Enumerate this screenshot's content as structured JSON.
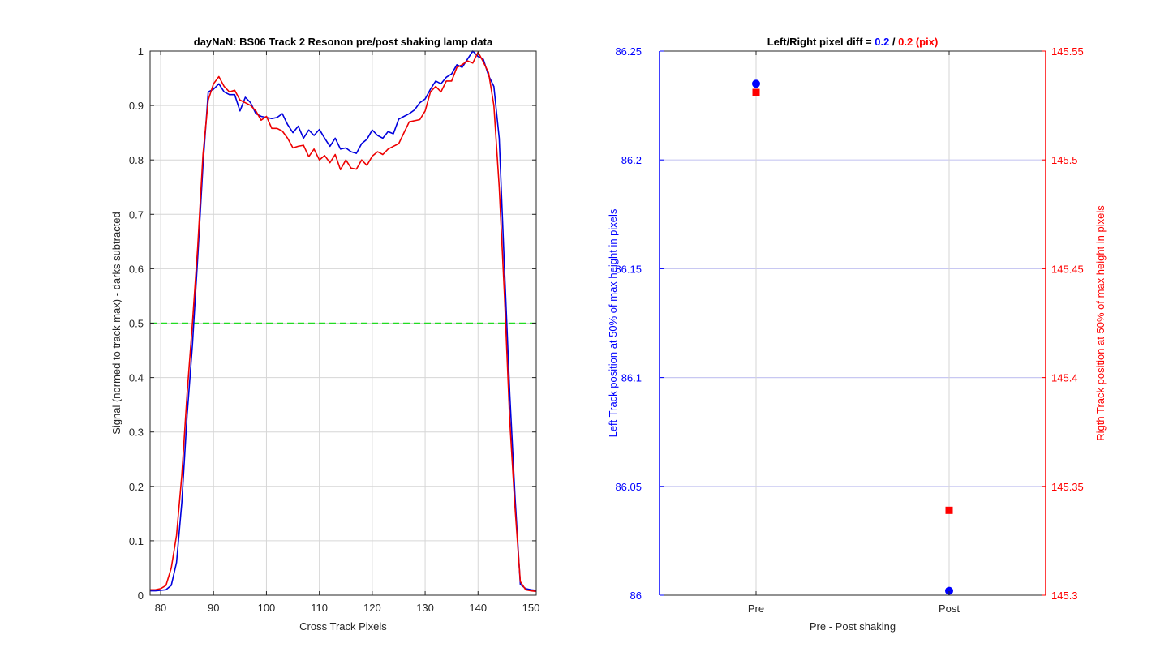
{
  "chart_data": [
    {
      "type": "line",
      "title": "dayNaN: BS06  Track 2 Resonon pre/post shaking lamp data",
      "xlabel": "Cross Track Pixels",
      "ylabel": "Signal (normed to track max) - darks subtracted",
      "xlim": [
        78,
        151
      ],
      "ylim": [
        0,
        1
      ],
      "xticks": [
        80,
        90,
        100,
        110,
        120,
        130,
        140,
        150
      ],
      "yticks": [
        0,
        0.1,
        0.2,
        0.3,
        0.4,
        0.5,
        0.6,
        0.7,
        0.8,
        0.9,
        1
      ],
      "grid": true,
      "reference_line": {
        "y": 0.5,
        "color": "#22dd22",
        "style": "dashed"
      },
      "series": [
        {
          "color": "#0000dd",
          "x": [
            78,
            79,
            80,
            81,
            82,
            83,
            84,
            85,
            86,
            87,
            88,
            89,
            90,
            91,
            92,
            93,
            94,
            95,
            96,
            97,
            98,
            99,
            100,
            101,
            102,
            103,
            104,
            105,
            106,
            107,
            108,
            109,
            110,
            111,
            112,
            113,
            114,
            115,
            116,
            117,
            118,
            119,
            120,
            121,
            122,
            123,
            124,
            125,
            126,
            127,
            128,
            129,
            130,
            131,
            132,
            133,
            134,
            135,
            136,
            137,
            138,
            139,
            140,
            141,
            142,
            143,
            144,
            145,
            146,
            147,
            148,
            149,
            150,
            151
          ],
          "values": [
            0.008,
            0.008,
            0.009,
            0.01,
            0.018,
            0.06,
            0.17,
            0.33,
            0.46,
            0.62,
            0.79,
            0.925,
            0.93,
            0.94,
            0.925,
            0.92,
            0.92,
            0.89,
            0.915,
            0.905,
            0.885,
            0.88,
            0.878,
            0.876,
            0.878,
            0.885,
            0.865,
            0.85,
            0.862,
            0.84,
            0.855,
            0.845,
            0.856,
            0.84,
            0.825,
            0.84,
            0.82,
            0.822,
            0.815,
            0.812,
            0.83,
            0.838,
            0.855,
            0.845,
            0.84,
            0.852,
            0.848,
            0.875,
            0.88,
            0.885,
            0.892,
            0.905,
            0.912,
            0.93,
            0.945,
            0.94,
            0.952,
            0.958,
            0.975,
            0.97,
            0.985,
            1.0,
            0.99,
            0.985,
            0.955,
            0.935,
            0.84,
            0.6,
            0.37,
            0.18,
            0.02,
            0.012,
            0.01,
            0.009
          ]
        },
        {
          "color": "#ee0000",
          "x": [
            78,
            79,
            80,
            81,
            82,
            83,
            84,
            85,
            86,
            87,
            88,
            89,
            90,
            91,
            92,
            93,
            94,
            95,
            96,
            97,
            98,
            99,
            100,
            101,
            102,
            103,
            104,
            105,
            106,
            107,
            108,
            109,
            110,
            111,
            112,
            113,
            114,
            115,
            116,
            117,
            118,
            119,
            120,
            121,
            122,
            123,
            124,
            125,
            126,
            127,
            128,
            129,
            130,
            131,
            132,
            133,
            134,
            135,
            136,
            137,
            138,
            139,
            140,
            141,
            142,
            143,
            144,
            145,
            146,
            147,
            148,
            149,
            150,
            151
          ],
          "values": [
            0.01,
            0.01,
            0.012,
            0.018,
            0.05,
            0.11,
            0.22,
            0.37,
            0.5,
            0.64,
            0.81,
            0.91,
            0.94,
            0.953,
            0.935,
            0.925,
            0.928,
            0.91,
            0.905,
            0.9,
            0.89,
            0.873,
            0.88,
            0.858,
            0.858,
            0.853,
            0.84,
            0.822,
            0.825,
            0.827,
            0.806,
            0.82,
            0.8,
            0.808,
            0.795,
            0.81,
            0.782,
            0.8,
            0.785,
            0.783,
            0.8,
            0.79,
            0.807,
            0.815,
            0.81,
            0.82,
            0.825,
            0.83,
            0.85,
            0.87,
            0.872,
            0.874,
            0.89,
            0.925,
            0.935,
            0.925,
            0.945,
            0.945,
            0.97,
            0.975,
            0.982,
            0.978,
            0.998,
            0.98,
            0.96,
            0.9,
            0.75,
            0.55,
            0.32,
            0.16,
            0.025,
            0.01,
            0.008,
            0.007
          ]
        }
      ]
    },
    {
      "type": "scatter",
      "title_prefix": "Left/Right pixel diff = ",
      "title_left_value": "0.2",
      "title_separator": " / ",
      "title_right_value": "0.2 (pix)",
      "xlabel": "Pre - Post shaking",
      "categories": [
        "Pre",
        "Post"
      ],
      "left_axis": {
        "label": "Left Track position at 50% of max height in pixels",
        "color": "#0000ff",
        "ylim": [
          86,
          86.25
        ],
        "ticks": [
          86,
          86.05,
          86.1,
          86.15,
          86.2,
          86.25
        ],
        "tick_labels": [
          "86",
          "86.05",
          "86.1",
          "86.15",
          "86.2",
          "86.25"
        ]
      },
      "right_axis": {
        "label": "Rigth Track position at 50% of max height in pixels",
        "color": "#ff0000",
        "ylim": [
          145.3,
          145.55
        ],
        "ticks": [
          145.3,
          145.35,
          145.4,
          145.45,
          145.5,
          145.55
        ],
        "tick_labels": [
          "145.3",
          "145.35",
          "145.4",
          "145.45",
          "145.5",
          "145.55"
        ]
      },
      "grid": true,
      "series": [
        {
          "axis": "left",
          "marker": "circle",
          "color": "#0000ff",
          "values": [
            86.235,
            86.002
          ]
        },
        {
          "axis": "right",
          "marker": "square",
          "color": "#ff0000",
          "values": [
            145.531,
            145.339
          ]
        }
      ]
    }
  ]
}
